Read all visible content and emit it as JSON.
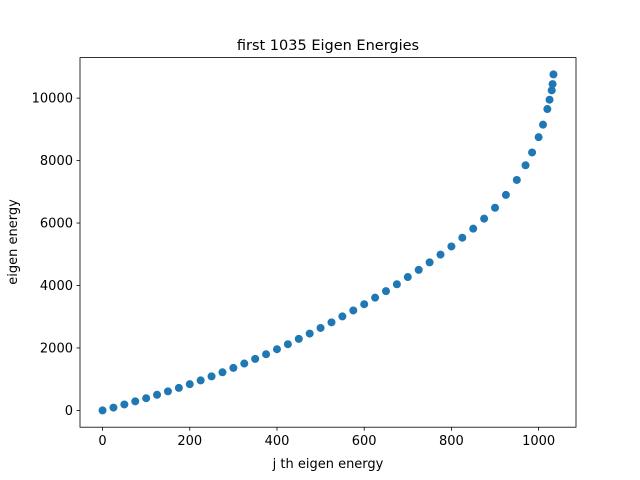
{
  "chart_data": {
    "type": "scatter",
    "title": "first 1035 Eigen Energies",
    "xlabel": "j th eigen energy",
    "ylabel": "eigen energy",
    "color": "#1f77b4",
    "x": [
      0,
      25,
      50,
      75,
      100,
      125,
      150,
      175,
      200,
      225,
      250,
      275,
      300,
      325,
      350,
      375,
      400,
      425,
      450,
      475,
      500,
      525,
      550,
      575,
      600,
      625,
      650,
      675,
      700,
      725,
      750,
      775,
      800,
      825,
      850,
      875,
      900,
      925,
      950,
      970,
      985,
      1000,
      1010,
      1020,
      1025,
      1030,
      1032,
      1034
    ],
    "values": [
      0,
      90,
      190,
      290,
      390,
      500,
      610,
      720,
      840,
      960,
      1090,
      1220,
      1360,
      1500,
      1650,
      1800,
      1960,
      2120,
      2290,
      2460,
      2640,
      2820,
      3010,
      3200,
      3400,
      3610,
      3820,
      4040,
      4270,
      4500,
      4740,
      4990,
      5250,
      5530,
      5820,
      6140,
      6490,
      6900,
      7380,
      7850,
      8260,
      8750,
      9150,
      9650,
      9950,
      10250,
      10450,
      10760
    ],
    "xlim": [
      -51.7,
      1085.7
    ],
    "xticks": [
      0,
      200,
      400,
      600,
      800,
      1000
    ],
    "ylim": [
      -538,
      11298
    ],
    "yticks": [
      0,
      2000,
      4000,
      6000,
      8000,
      10000
    ]
  }
}
